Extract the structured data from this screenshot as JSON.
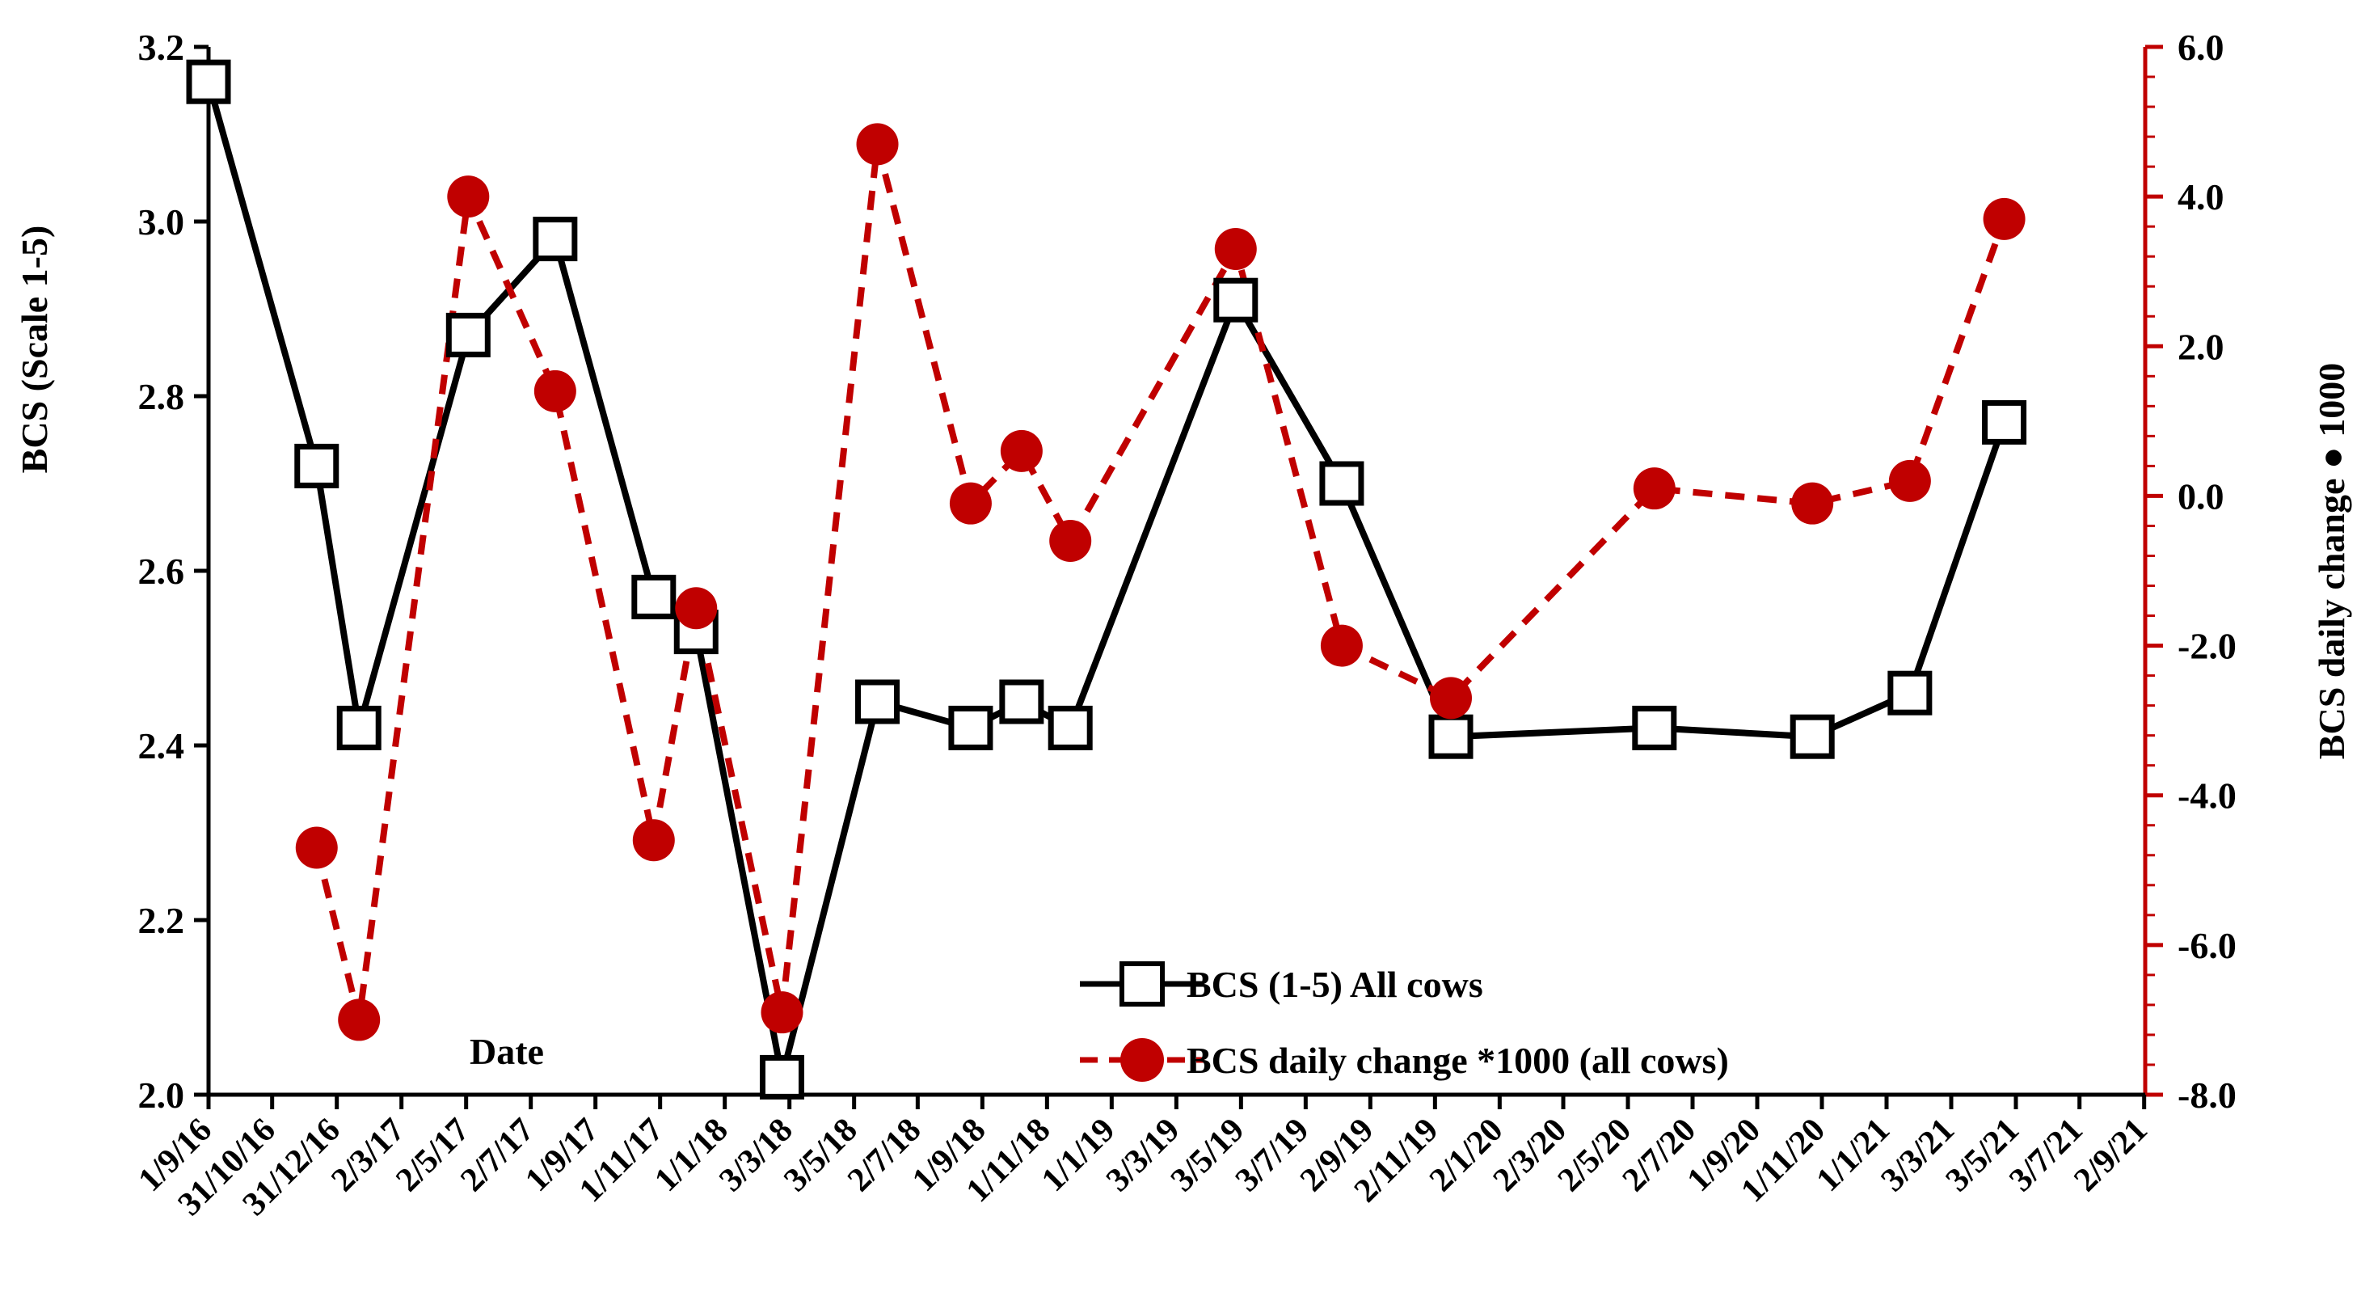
{
  "chart_data": {
    "type": "line",
    "x_label_text": "Date",
    "ylabel": "BCS (Scale 1-5)",
    "ylabel_right": "BCS daily change ● 1000",
    "ylim": [
      2.0,
      3.2
    ],
    "ylim_right": [
      -8.0,
      6.0
    ],
    "yticks": [
      "2.0",
      "2.2",
      "2.4",
      "2.6",
      "2.8",
      "3.0",
      "3.2"
    ],
    "yticks_right": [
      "-8.0",
      "-6.0",
      "-4.0",
      "-2.0",
      "0.0",
      "2.0",
      "4.0",
      "6.0"
    ],
    "x_start_day": 0,
    "x_end_day": 1827,
    "x_tick_labels": [
      "1/9/16",
      "31/10/16",
      "31/12/16",
      "2/3/17",
      "2/5/17",
      "2/7/17",
      "1/9/17",
      "1/11/17",
      "1/1/18",
      "3/3/18",
      "3/5/18",
      "2/7/18",
      "1/9/18",
      "1/11/18",
      "1/1/19",
      "3/3/19",
      "3/5/19",
      "3/7/19",
      "2/9/19",
      "2/11/19",
      "2/1/20",
      "2/3/20",
      "2/5/20",
      "2/7/20",
      "1/9/20",
      "1/11/20",
      "1/1/21",
      "3/3/21",
      "3/5/21",
      "3/7/21",
      "2/9/21"
    ],
    "x_tick_days": [
      0,
      60,
      121,
      182,
      243,
      304,
      365,
      426,
      487,
      548,
      609,
      669,
      730,
      791,
      852,
      913,
      974,
      1035,
      1096,
      1157,
      1218,
      1278,
      1339,
      1400,
      1461,
      1522,
      1583,
      1644,
      1705,
      1765,
      1826
    ],
    "series": [
      {
        "name": "BCS (1-5) All cows",
        "axis": "left",
        "color": "#000000",
        "marker": "square",
        "dash": "solid",
        "points": [
          [
            0,
            3.16
          ],
          [
            102,
            2.72
          ],
          [
            142,
            2.42
          ],
          [
            245,
            2.87
          ],
          [
            327,
            2.98
          ],
          [
            420,
            2.57
          ],
          [
            460,
            2.53
          ],
          [
            541,
            2.02
          ],
          [
            631,
            2.45
          ],
          [
            719,
            2.42
          ],
          [
            767,
            2.45
          ],
          [
            813,
            2.42
          ],
          [
            969,
            2.91
          ],
          [
            1069,
            2.7
          ],
          [
            1172,
            2.41
          ],
          [
            1364,
            2.42
          ],
          [
            1513,
            2.41
          ],
          [
            1605,
            2.46
          ],
          [
            1694,
            2.77
          ]
        ]
      },
      {
        "name": "BCS daily change *1000 (all cows)",
        "axis": "right",
        "color": "#c00000",
        "marker": "circle",
        "dash": "dashed",
        "points": [
          [
            102,
            -4.7
          ],
          [
            142,
            -7.0
          ],
          [
            245,
            4.0
          ],
          [
            327,
            1.4
          ],
          [
            420,
            -4.6
          ],
          [
            460,
            -1.5
          ],
          [
            541,
            -6.9
          ],
          [
            631,
            4.7
          ],
          [
            719,
            -0.1
          ],
          [
            767,
            0.6
          ],
          [
            813,
            -0.6
          ],
          [
            969,
            3.3
          ],
          [
            1069,
            -2.0
          ],
          [
            1172,
            -2.7
          ],
          [
            1364,
            0.1
          ],
          [
            1513,
            -0.1
          ],
          [
            1605,
            0.2
          ],
          [
            1694,
            3.7
          ]
        ]
      }
    ]
  }
}
